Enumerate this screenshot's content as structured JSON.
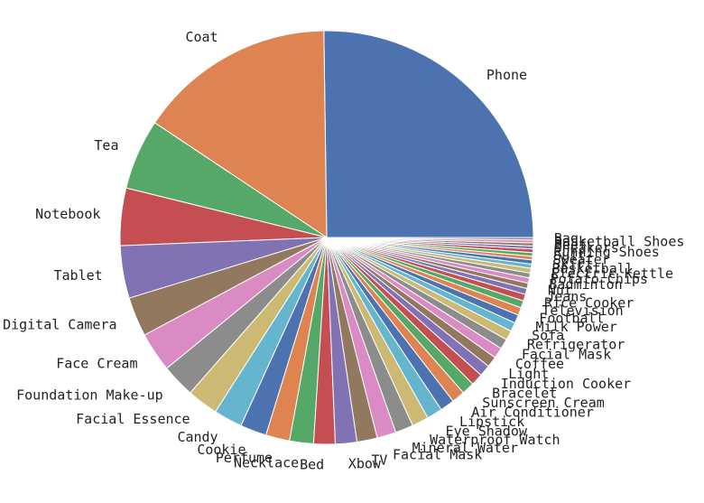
{
  "chart_data": {
    "type": "pie",
    "title": "",
    "categories": [
      "Phone",
      "Coat",
      "Tea",
      "Notebook",
      "Tablet",
      "Digital Camera",
      "Face Cream",
      "Foundation Make-up",
      "Facial Essence",
      "Candy",
      "Cookie",
      "Perfume",
      "Necklace",
      "Bed",
      "Xbow",
      "TV",
      "Facial Mask",
      "Mineral Water",
      "Waterproof Watch",
      "Eye Shadow",
      "Lipstick",
      "Air Conditioner",
      "Sunscreen Cream",
      "Bracelet",
      "Induction Cooker",
      "Light",
      "Coffee",
      "Facial Mask",
      "Refrigerator",
      "Sofa",
      "Milk Power",
      "Football",
      "Television",
      "Rice Cooker",
      "Jeans",
      "Nut",
      "Badminton",
      "Potato Chips",
      "Electric Kettle",
      "Basketball",
      "Skirt",
      "Sweater",
      "Suit",
      "Running Shoes",
      "Sneakers",
      "Beef",
      "Basketball Shoes",
      "Bag"
    ],
    "values": [
      27.0,
      16.5,
      5.9,
      4.8,
      4.4,
      3.3,
      3.3,
      2.8,
      2.6,
      2.4,
      2.2,
      2.0,
      2.0,
      1.8,
      1.8,
      1.7,
      1.6,
      1.5,
      1.4,
      1.3,
      1.2,
      1.1,
      1.05,
      1.0,
      0.95,
      0.9,
      0.9,
      0.85,
      0.8,
      0.75,
      0.7,
      0.65,
      0.6,
      0.55,
      0.5,
      0.45,
      0.45,
      0.4,
      0.4,
      0.35,
      0.35,
      0.3,
      0.3,
      0.3,
      0.25,
      0.25,
      0.25,
      0.2
    ],
    "colors": [
      "#4c72b0",
      "#dd8452",
      "#55a868",
      "#c44e52",
      "#8172b3",
      "#937860",
      "#da8bc3",
      "#8c8c8c",
      "#ccb974",
      "#64b5cd"
    ],
    "start_angle_deg": 0,
    "direction": "counterclockwise",
    "legend": "none"
  }
}
